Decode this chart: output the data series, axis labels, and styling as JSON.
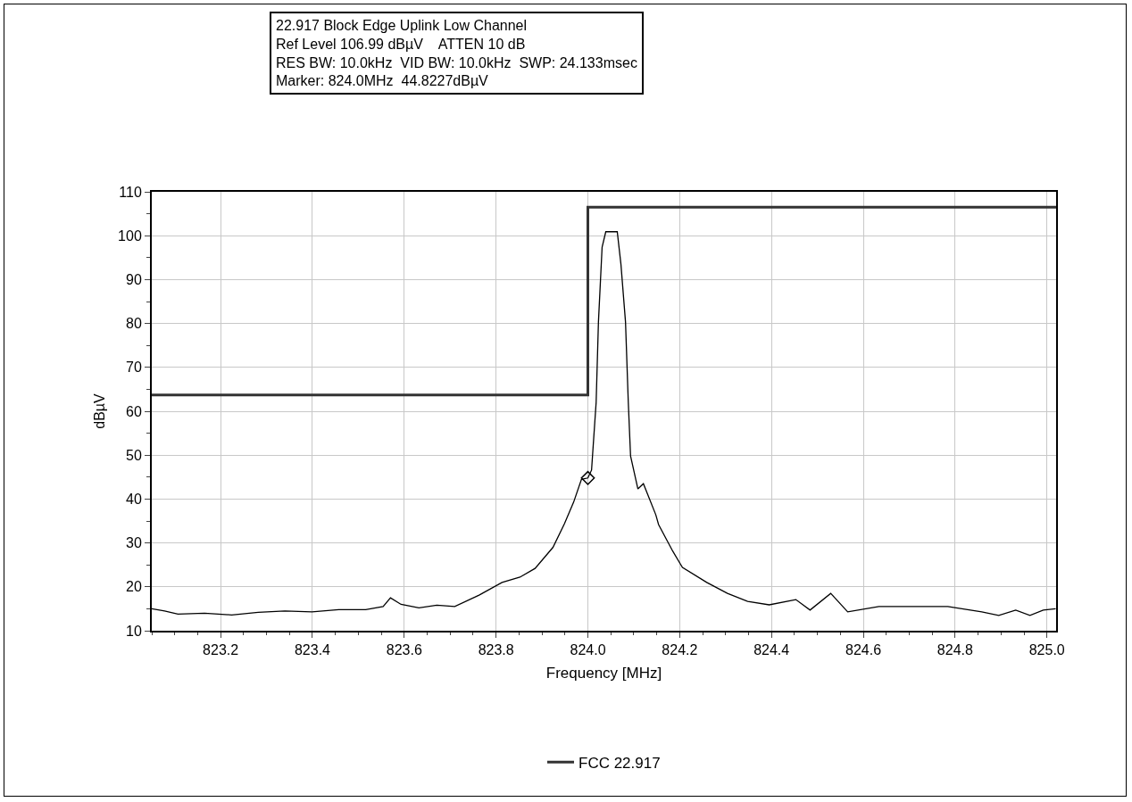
{
  "chart_data": {
    "type": "line",
    "title": "22.917 Block Edge Uplink Low Channel",
    "annotations": [
      "Ref Level 106.99 dBµV    ATTEN 10 dB",
      "RES BW: 10.0kHz  VID BW: 10.0kHz  SWP: 24.133msec",
      "Marker: 824.0MHz  44.8227dBµV"
    ],
    "xlabel": "Frequency [MHz]",
    "ylabel": "dBµV",
    "xlim": [
      823.05,
      825.02
    ],
    "xticks": [
      823.2,
      823.4,
      823.6,
      823.8,
      {
        "value": 824,
        "label": "824.0"
      },
      824.2,
      824.4,
      824.6,
      824.8,
      {
        "value": 825,
        "label": "825.0"
      }
    ],
    "ylim": [
      10,
      110
    ],
    "yticks": [
      10,
      20,
      30,
      40,
      50,
      60,
      70,
      80,
      90,
      100,
      110
    ],
    "grid": true,
    "legend": "bottom",
    "line_style": "solid",
    "marker": "none",
    "series": [
      {
        "color": "#000000",
        "x": [
          823.05,
          823.078,
          823.107,
          823.165,
          823.224,
          823.282,
          823.34,
          823.399,
          823.457,
          823.516,
          823.554,
          823.57,
          823.593,
          823.632,
          823.671,
          823.71,
          823.763,
          823.813,
          823.852,
          823.885,
          823.924,
          823.949,
          823.969,
          823.986,
          824.0,
          824.008,
          824.018,
          824.023,
          824.031,
          824.039,
          824.064,
          824.072,
          824.082,
          824.088,
          824.093,
          824.109,
          824.121,
          824.148,
          824.154,
          824.185,
          824.206,
          824.259,
          824.304,
          824.348,
          824.395,
          824.453,
          824.484,
          824.529,
          824.566,
          824.634,
          824.708,
          824.784,
          824.858,
          824.895,
          824.932,
          824.963,
          824.992,
          825.019
        ],
        "values": [
          15,
          14.5,
          13.8,
          14,
          13.6,
          14.2,
          14.5,
          14.3,
          14.8,
          14.8,
          15.5,
          17.5,
          16,
          15.2,
          15.8,
          15.5,
          18.1,
          21,
          22.2,
          24.2,
          29,
          34.4,
          39.3,
          44.5,
          44.8,
          46.6,
          62,
          80.3,
          97.4,
          100.9,
          100.9,
          93.5,
          80.3,
          62.2,
          49.8,
          42.3,
          43.5,
          36.4,
          34.2,
          28.1,
          24.4,
          21,
          18.5,
          16.7,
          15.9,
          17.1,
          14.7,
          18.5,
          14.3,
          15.5,
          15.5,
          15.5,
          14.3,
          13.5,
          14.7,
          13.5,
          14.7,
          15
        ]
      },
      {
        "type": "scatter",
        "marker": "diamond",
        "color": "#000000",
        "x": [
          824.0
        ],
        "values": [
          44.8
        ]
      },
      {
        "name": "FCC 22.917",
        "color": "#333333",
        "x": [
          823.05,
          824.0,
          824.0,
          825.02
        ],
        "values": [
          63.7,
          63.7,
          106.5,
          106.5
        ]
      }
    ]
  }
}
